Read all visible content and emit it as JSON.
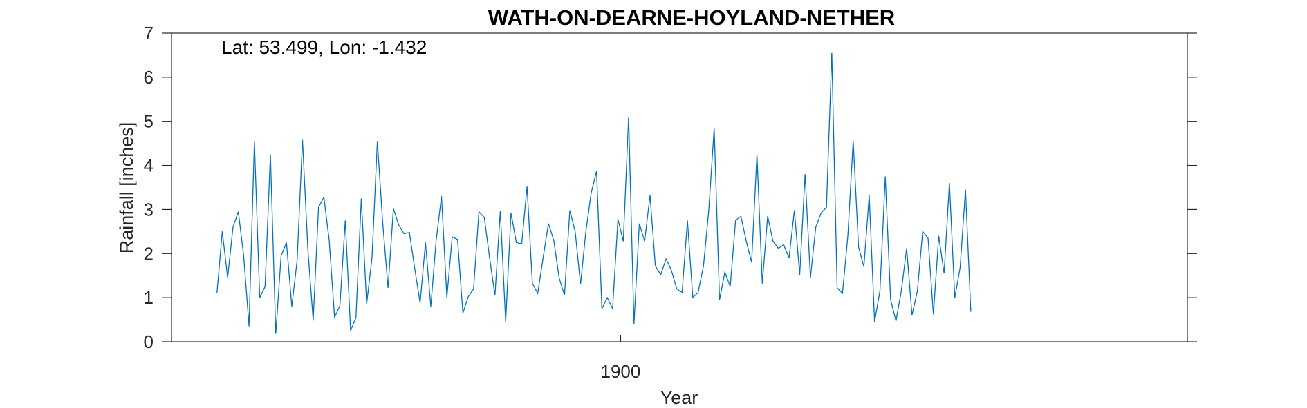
{
  "chart_data": {
    "type": "line",
    "title": "WATH-ON-DEARNE-HOYLAND-NETHER",
    "xlabel": "Year",
    "ylabel": "Rainfall [inches]",
    "annotation": "Lat: 53.499, Lon: -1.432",
    "xlim": [
      1858,
      1953
    ],
    "ylim": [
      0,
      7
    ],
    "xticks": [
      {
        "value": 1900,
        "label": "1900"
      }
    ],
    "yticks": [
      {
        "value": 0,
        "label": "0"
      },
      {
        "value": 1,
        "label": "1"
      },
      {
        "value": 2,
        "label": "2"
      },
      {
        "value": 3,
        "label": "3"
      },
      {
        "value": 4,
        "label": "4"
      },
      {
        "value": 5,
        "label": "5"
      },
      {
        "value": 6,
        "label": "6"
      },
      {
        "value": 7,
        "label": "7"
      }
    ],
    "grid": false,
    "series": [
      {
        "color": "#0072BD",
        "x_start": 1862.25,
        "x_step": 0.5,
        "values": [
          1.1,
          2.5,
          1.45,
          2.6,
          2.95,
          1.95,
          0.35,
          4.55,
          1.0,
          1.25,
          4.25,
          0.18,
          1.95,
          2.25,
          0.8,
          1.85,
          4.58,
          2.1,
          0.48,
          3.05,
          3.28,
          2.3,
          0.55,
          0.82,
          2.75,
          0.25,
          0.55,
          3.25,
          0.85,
          1.9,
          4.55,
          2.7,
          1.22,
          3.02,
          2.65,
          2.45,
          2.48,
          1.65,
          0.88,
          2.25,
          0.8,
          2.3,
          3.3,
          1.0,
          2.38,
          2.32,
          0.65,
          1.02,
          1.2,
          2.95,
          2.82,
          1.9,
          1.05,
          2.97,
          0.45,
          2.92,
          2.25,
          2.22,
          3.52,
          1.32,
          1.1,
          1.9,
          2.68,
          2.3,
          1.45,
          1.05,
          2.98,
          2.5,
          1.3,
          2.5,
          3.38,
          3.87,
          0.75,
          1.0,
          0.75,
          2.78,
          2.28,
          5.1,
          0.4,
          2.68,
          2.28,
          3.32,
          1.72,
          1.52,
          1.88,
          1.62,
          1.2,
          1.12,
          2.75,
          1.0,
          1.12,
          1.72,
          3.0,
          4.85,
          0.95,
          1.58,
          1.25,
          2.75,
          2.85,
          2.28,
          1.8,
          4.25,
          1.32,
          2.85,
          2.28,
          2.12,
          2.2,
          1.9,
          2.98,
          1.52,
          3.8,
          1.45,
          2.6,
          2.92,
          3.05,
          6.55,
          1.22,
          1.1,
          2.4,
          4.56,
          2.15,
          1.7,
          3.32,
          0.45,
          1.15,
          3.75,
          0.95,
          0.47,
          1.15,
          2.12,
          0.6,
          1.15,
          2.5,
          2.35,
          0.62,
          2.4,
          1.55,
          3.6,
          1.0,
          1.68,
          3.45,
          0.68
        ]
      }
    ]
  }
}
